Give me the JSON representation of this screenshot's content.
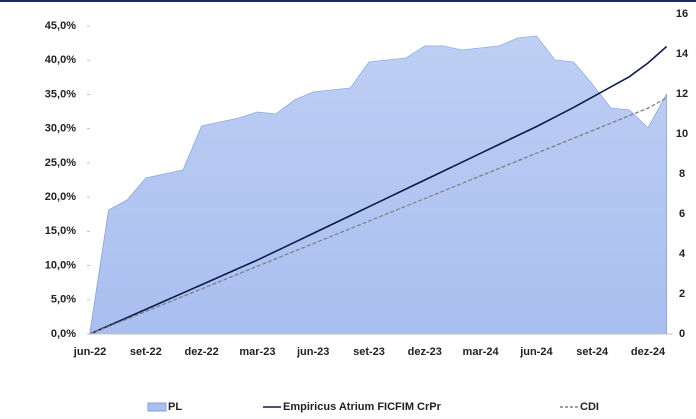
{
  "chart_data": {
    "type": "combo",
    "categories": [
      "jun-22",
      null,
      null,
      "set-22",
      null,
      null,
      "dez-22",
      null,
      null,
      "mar-23",
      null,
      null,
      "jun-23",
      null,
      null,
      "set-23",
      null,
      null,
      "dez-23",
      null,
      null,
      "mar-24",
      null,
      null,
      "jun-24",
      null,
      null,
      "set-24",
      null,
      null,
      "dez-24",
      null
    ],
    "series": [
      {
        "name": "PL",
        "kind": "area",
        "axis": "y2",
        "color": "#a9bff0",
        "values": [
          0.1,
          6.2,
          6.7,
          7.8,
          8.0,
          8.2,
          10.4,
          10.6,
          10.8,
          11.1,
          11.0,
          11.7,
          12.1,
          12.2,
          12.3,
          13.6,
          13.7,
          13.8,
          14.4,
          14.4,
          14.2,
          14.3,
          14.4,
          14.8,
          14.9,
          13.7,
          13.6,
          12.5,
          11.3,
          11.2,
          10.3,
          12.0
        ]
      },
      {
        "name": "Empiricus Atrium FICFIM CrPr",
        "kind": "line",
        "axis": "y",
        "color": "#0d1b4a",
        "values": [
          0,
          1.2,
          2.4,
          3.6,
          4.8,
          6.0,
          7.2,
          8.4,
          9.6,
          10.8,
          12.1,
          13.4,
          14.7,
          16.0,
          17.3,
          18.6,
          19.9,
          21.2,
          22.5,
          23.8,
          25.1,
          26.4,
          27.7,
          29.0,
          30.3,
          31.7,
          33.1,
          34.6,
          36.1,
          37.6,
          39.6,
          42.0
        ]
      },
      {
        "name": "CDI",
        "kind": "dashed",
        "axis": "y",
        "color": "#808080",
        "values": [
          0,
          1.1,
          2.2,
          3.3,
          4.4,
          5.5,
          6.6,
          7.7,
          8.8,
          9.9,
          11.0,
          12.1,
          13.2,
          14.3,
          15.4,
          16.5,
          17.6,
          18.7,
          19.8,
          20.9,
          22.0,
          23.1,
          24.2,
          25.3,
          26.4,
          27.5,
          28.6,
          29.7,
          30.8,
          31.9,
          33.0,
          34.5
        ]
      }
    ],
    "ylim": [
      0,
      45
    ],
    "yticks": [
      {
        "value": 0,
        "label": "0,0%"
      },
      {
        "value": 5,
        "label": "5,0%"
      },
      {
        "value": 10,
        "label": "10,0%"
      },
      {
        "value": 15,
        "label": "15,0%"
      },
      {
        "value": 20,
        "label": "20,0%"
      },
      {
        "value": 25,
        "label": "25,0%"
      },
      {
        "value": 30,
        "label": "30,0%"
      },
      {
        "value": 35,
        "label": "35,0%"
      },
      {
        "value": 40,
        "label": "40,0%"
      },
      {
        "value": 45,
        "label": "45,0%"
      }
    ],
    "y2lim": [
      0,
      16
    ],
    "y2ticks": [
      0,
      2,
      4,
      6,
      8,
      10,
      12,
      14,
      16
    ],
    "legend": "bottom"
  }
}
